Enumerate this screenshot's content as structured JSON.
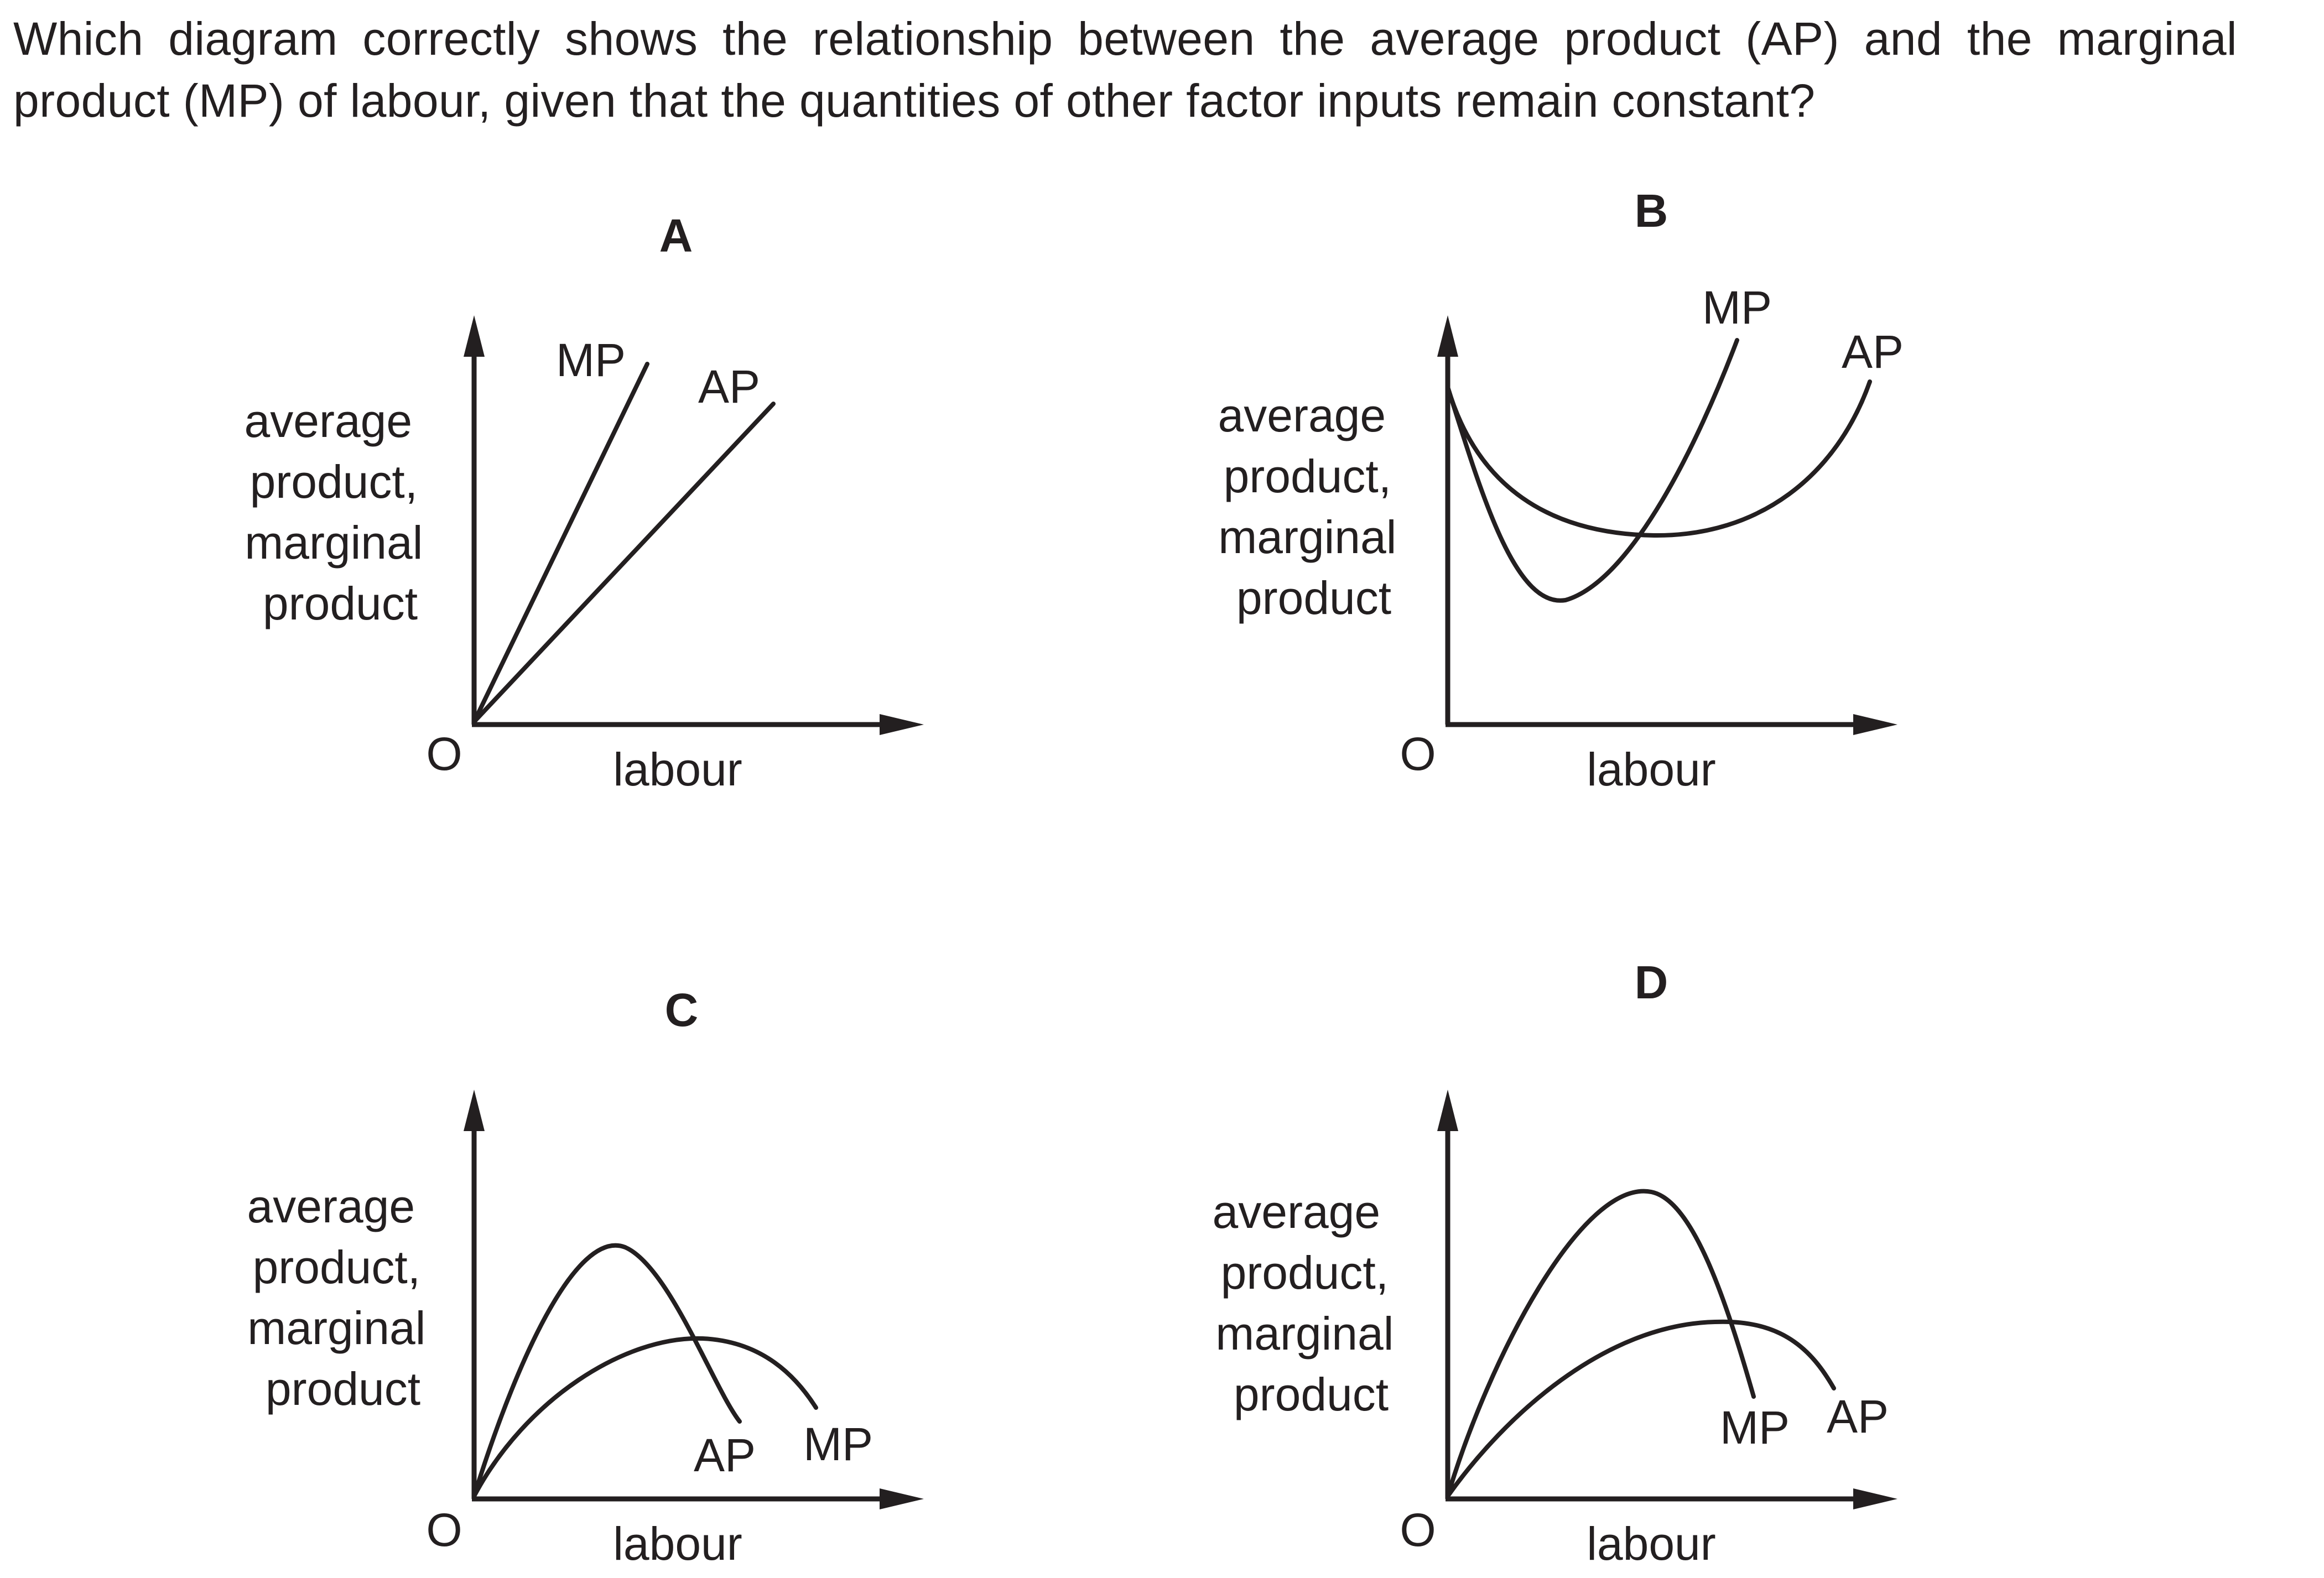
{
  "question": "Which diagram correctly shows the relationship between the average product (AP) and the marginal product (MP) of labour, given that the quantities of other factor inputs remain constant?",
  "y_axis_label": [
    "average",
    "product,",
    "marginal",
    "product"
  ],
  "x_axis_label": "labour",
  "origin_label": "O",
  "options": [
    {
      "letter": "A",
      "curve_labels": [
        "MP",
        "AP"
      ]
    },
    {
      "letter": "B",
      "curve_labels": [
        "MP",
        "AP"
      ]
    },
    {
      "letter": "C",
      "curve_labels": [
        "AP",
        "MP"
      ]
    },
    {
      "letter": "D",
      "curve_labels": [
        "MP",
        "AP"
      ]
    }
  ],
  "colors": {
    "ink": "#231f20",
    "background": "#ffffff"
  }
}
